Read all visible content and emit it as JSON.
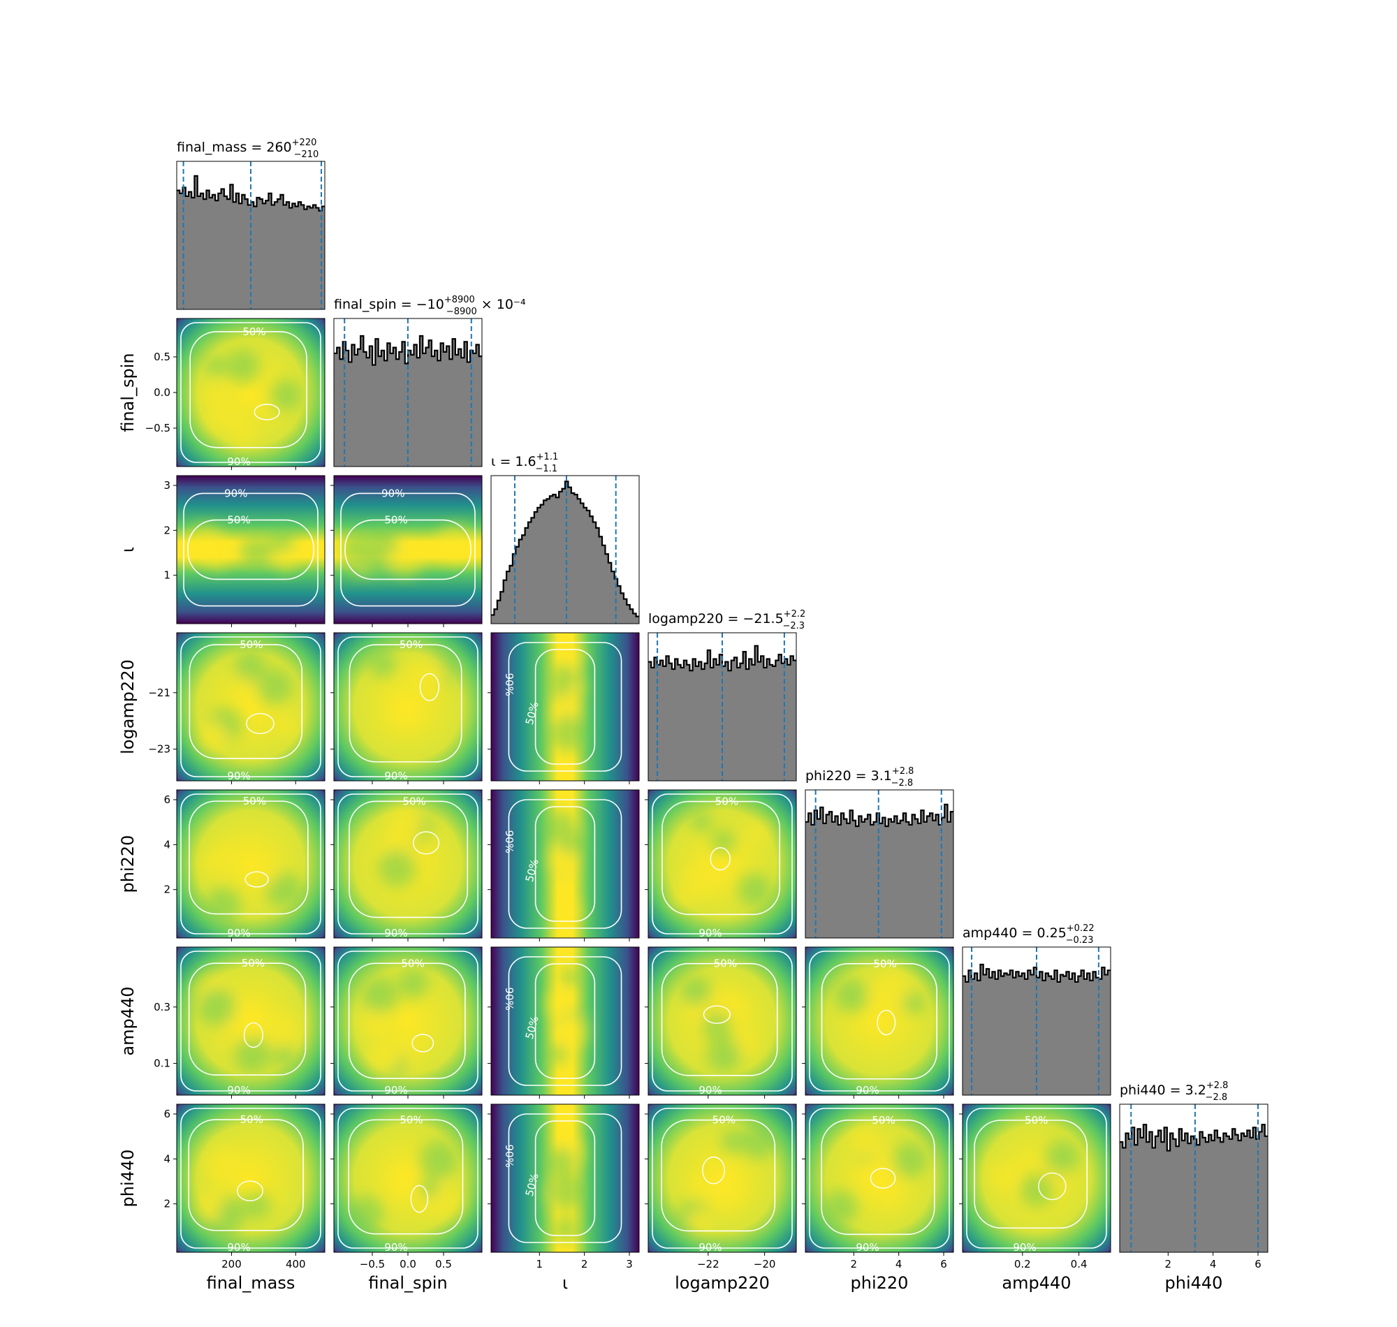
{
  "figure": {
    "type": "corner-plot",
    "parameters": [
      {
        "key": "final_mass",
        "label": "final_mass",
        "range": [
          40,
          480
        ],
        "ticks": [
          200,
          400
        ],
        "tick_labels": [
          "200",
          "400"
        ]
      },
      {
        "key": "final_spin",
        "label": "final_spin",
        "range": [
          -0.99,
          0.99
        ],
        "ticks": [
          -0.5,
          0.0,
          0.5
        ],
        "tick_labels": [
          "−0.5",
          "0.0",
          "0.5"
        ]
      },
      {
        "key": "iota",
        "label": "ι",
        "range": [
          0.0,
          3.14
        ],
        "ticks": [
          1,
          2,
          3
        ],
        "tick_labels": [
          "1",
          "2",
          "3"
        ]
      },
      {
        "key": "logamp220",
        "label": "logamp220",
        "range": [
          -24.0,
          -19.0
        ],
        "ticks": [
          -22,
          -20
        ],
        "tick_labels": [
          "−22",
          "−20"
        ],
        "y_ticks": [
          -21,
          -23
        ],
        "y_tick_labels": [
          "−21",
          "−23"
        ]
      },
      {
        "key": "phi220",
        "label": "phi220",
        "range": [
          0.0,
          6.28
        ],
        "ticks": [
          2,
          4,
          6
        ],
        "tick_labels": [
          "2",
          "4",
          "6"
        ]
      },
      {
        "key": "amp440",
        "label": "amp440",
        "range": [
          0.0,
          0.5
        ],
        "ticks": [
          0.2,
          0.4
        ],
        "tick_labels": [
          "0.2",
          "0.4"
        ],
        "y_ticks": [
          0.1,
          0.3
        ],
        "y_tick_labels": [
          "0.1",
          "0.3"
        ]
      },
      {
        "key": "phi440",
        "label": "phi440",
        "range": [
          0.0,
          6.28
        ],
        "ticks": [
          2,
          4,
          6
        ],
        "tick_labels": [
          "2",
          "4",
          "6"
        ]
      }
    ],
    "contour_labels": {
      "inner": "50%",
      "outer": "90%"
    },
    "colors": {
      "hist_fill": "#808080",
      "hist_edge": "#000000",
      "quantile_line": "#1f77b4",
      "contour": "#ffffff",
      "cmap": [
        "#440154",
        "#3b528b",
        "#21918c",
        "#5ec962",
        "#fde725"
      ]
    }
  },
  "chart_data": {
    "type": "corner",
    "diagonal": [
      {
        "param": "final_mass",
        "title": {
          "name": "final_mass",
          "median": "260",
          "plus": "+220",
          "minus": "−210",
          "suffix": ""
        },
        "quantiles": [
          50,
          260,
          480
        ],
        "hist_shape": "flat",
        "hist_values": [
          0.82,
          0.8,
          0.84,
          0.78,
          0.81,
          0.77,
          0.92,
          0.78,
          0.8,
          0.76,
          0.82,
          0.77,
          0.79,
          0.75,
          0.8,
          0.83,
          0.78,
          0.76,
          0.86,
          0.74,
          0.8,
          0.73,
          0.79,
          0.76,
          0.72,
          0.74,
          0.71,
          0.77,
          0.76,
          0.73,
          0.75,
          0.8,
          0.72,
          0.74,
          0.76,
          0.79,
          0.72,
          0.74,
          0.7,
          0.73,
          0.71,
          0.74,
          0.72,
          0.69,
          0.71,
          0.7,
          0.72,
          0.7,
          0.68,
          0.71
        ]
      },
      {
        "param": "final_spin",
        "title": {
          "name": "final_spin",
          "median": "−10",
          "plus": "+8900",
          "minus": "−8900",
          "suffix": "× 10⁻⁴"
        },
        "quantiles": [
          -0.89,
          -0.001,
          0.89
        ],
        "hist_shape": "flat",
        "hist_values": [
          0.78,
          0.82,
          0.74,
          0.86,
          0.8,
          0.72,
          0.84,
          0.77,
          0.81,
          0.9,
          0.79,
          0.75,
          0.83,
          0.7,
          0.88,
          0.76,
          0.8,
          0.73,
          0.85,
          0.78,
          0.82,
          0.74,
          0.79,
          0.86,
          0.71,
          0.8,
          0.77,
          0.84,
          0.75,
          0.9,
          0.78,
          0.82,
          0.87,
          0.76,
          0.8,
          0.73,
          0.85,
          0.79,
          0.83,
          0.74,
          0.88,
          0.77,
          0.81,
          0.75,
          0.86,
          0.72,
          0.8,
          0.78,
          0.84,
          0.76
        ]
      },
      {
        "param": "iota",
        "title": {
          "name": "ι",
          "median": "1.6",
          "plus": "+1.1",
          "minus": "−1.1",
          "suffix": ""
        },
        "quantiles": [
          0.45,
          1.6,
          2.7
        ],
        "hist_shape": "peaked",
        "hist_values": [
          0.06,
          0.1,
          0.16,
          0.22,
          0.3,
          0.36,
          0.4,
          0.48,
          0.53,
          0.58,
          0.61,
          0.66,
          0.7,
          0.73,
          0.77,
          0.8,
          0.82,
          0.85,
          0.86,
          0.88,
          0.89,
          0.87,
          0.91,
          0.93,
          0.98,
          0.94,
          0.9,
          0.89,
          0.86,
          0.83,
          0.8,
          0.78,
          0.74,
          0.7,
          0.66,
          0.6,
          0.54,
          0.48,
          0.42,
          0.36,
          0.31,
          0.26,
          0.21,
          0.17,
          0.13,
          0.1,
          0.07,
          0.05
        ]
      },
      {
        "param": "logamp220",
        "title": {
          "name": "logamp220",
          "median": "−21.5",
          "plus": "+2.2",
          "minus": "−2.3",
          "suffix": ""
        },
        "quantiles": [
          -23.8,
          -21.5,
          -19.3
        ],
        "hist_shape": "flat",
        "hist_values": [
          0.82,
          0.78,
          0.85,
          0.8,
          0.83,
          0.79,
          0.86,
          0.81,
          0.77,
          0.84,
          0.8,
          0.78,
          0.83,
          0.8,
          0.76,
          0.84,
          0.79,
          0.82,
          0.77,
          0.81,
          0.9,
          0.78,
          0.84,
          0.8,
          0.87,
          0.79,
          0.82,
          0.76,
          0.83,
          0.85,
          0.78,
          0.81,
          0.89,
          0.77,
          0.84,
          0.8,
          0.93,
          0.82,
          0.86,
          0.78,
          0.84,
          0.8,
          0.79,
          0.83,
          0.87,
          0.81,
          0.84,
          0.8,
          0.86,
          0.83
        ]
      },
      {
        "param": "phi220",
        "title": {
          "name": "phi220",
          "median": "3.1",
          "plus": "+2.8",
          "minus": "−2.8",
          "suffix": ""
        },
        "quantiles": [
          0.3,
          3.1,
          5.9
        ],
        "hist_shape": "flat",
        "hist_values": [
          0.8,
          0.86,
          0.78,
          0.88,
          0.82,
          0.9,
          0.79,
          0.85,
          0.87,
          0.8,
          0.84,
          0.78,
          0.86,
          0.82,
          0.79,
          0.88,
          0.81,
          0.77,
          0.84,
          0.8,
          0.82,
          0.85,
          0.78,
          0.8,
          0.86,
          0.79,
          0.83,
          0.77,
          0.82,
          0.8,
          0.84,
          0.79,
          0.81,
          0.86,
          0.8,
          0.78,
          0.85,
          0.82,
          0.79,
          0.88,
          0.8,
          0.84,
          0.86,
          0.81,
          0.85,
          0.78,
          0.83,
          0.92,
          0.8,
          0.87
        ]
      },
      {
        "param": "amp440",
        "title": {
          "name": "amp440",
          "median": "0.25",
          "plus": "+0.22",
          "minus": "−0.23",
          "suffix": ""
        },
        "quantiles": [
          0.02,
          0.25,
          0.47
        ],
        "hist_shape": "flat",
        "hist_values": [
          0.82,
          0.78,
          0.86,
          0.8,
          0.84,
          0.79,
          0.9,
          0.83,
          0.87,
          0.81,
          0.85,
          0.8,
          0.86,
          0.82,
          0.84,
          0.83,
          0.86,
          0.81,
          0.85,
          0.82,
          0.84,
          0.8,
          0.86,
          0.83,
          0.88,
          0.81,
          0.85,
          0.79,
          0.84,
          0.82,
          0.8,
          0.86,
          0.78,
          0.83,
          0.82,
          0.85,
          0.8,
          0.84,
          0.78,
          0.82,
          0.86,
          0.8,
          0.84,
          0.79,
          0.85,
          0.81,
          0.8,
          0.88,
          0.83,
          0.86
        ]
      },
      {
        "param": "phi440",
        "title": {
          "name": "phi440",
          "median": "3.2",
          "plus": "+2.8",
          "minus": "−2.8",
          "suffix": ""
        },
        "quantiles": [
          0.35,
          3.2,
          6.0
        ],
        "hist_shape": "flat",
        "hist_values": [
          0.76,
          0.72,
          0.82,
          0.78,
          0.86,
          0.74,
          0.85,
          0.79,
          0.88,
          0.76,
          0.83,
          0.72,
          0.8,
          0.84,
          0.76,
          0.86,
          0.7,
          0.82,
          0.78,
          0.73,
          0.85,
          0.77,
          0.82,
          0.75,
          0.8,
          0.78,
          0.74,
          0.83,
          0.79,
          0.76,
          0.81,
          0.77,
          0.84,
          0.79,
          0.76,
          0.82,
          0.8,
          0.78,
          0.85,
          0.81,
          0.77,
          0.82,
          0.8,
          0.84,
          0.79,
          0.86,
          0.78,
          0.83,
          0.88,
          0.8
        ]
      }
    ]
  }
}
